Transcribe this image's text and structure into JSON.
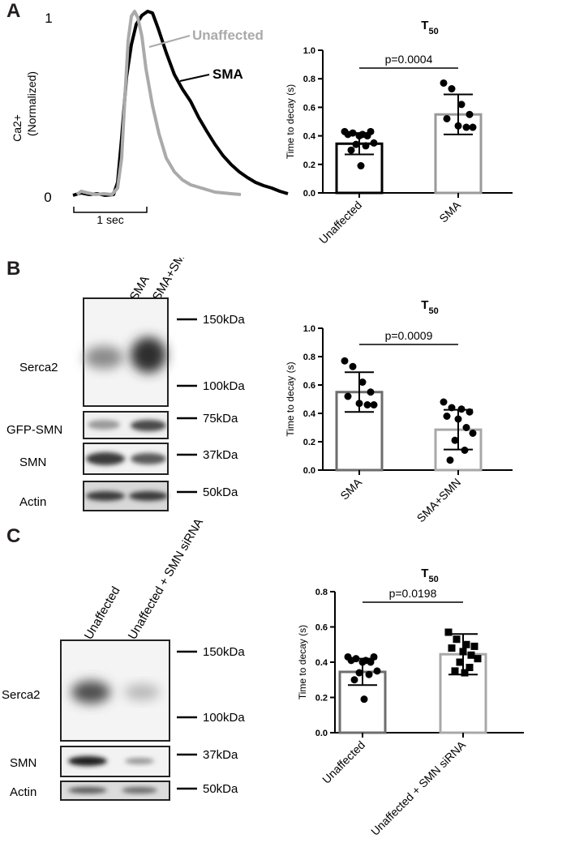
{
  "panels": {
    "A": {
      "letter": "A",
      "trace": {
        "ylabel_line1": "Ca2+",
        "ylabel_line2": "(Normalized)",
        "ytick_top": "1",
        "ytick_bottom": "0",
        "scalebar_label": "1 sec",
        "label_unaffected": "Unaffected",
        "label_sma": "SMA",
        "color_unaffected": "#aaaaaa",
        "color_sma": "#000000"
      }
    },
    "B": {
      "letter": "B",
      "lanes": [
        "SMA",
        "SMA+SMN"
      ],
      "rows": [
        {
          "label": "Serca2",
          "markers": [
            "150kDa",
            "100kDa"
          ]
        },
        {
          "label": "GFP-SMN",
          "markers": [
            "75kDa"
          ]
        },
        {
          "label": "SMN",
          "markers": [
            "37kDa"
          ]
        },
        {
          "label": "Actin",
          "markers": [
            "50kDa"
          ]
        }
      ]
    },
    "C": {
      "letter": "C",
      "lanes": [
        "Unaffected",
        "Unaffected + SMN siRNA"
      ],
      "rows": [
        {
          "label": "Serca2",
          "markers": [
            "150kDa",
            "100kDa"
          ]
        },
        {
          "label": "SMN",
          "markers": [
            "37kDa"
          ]
        },
        {
          "label": "Actin",
          "markers": [
            "50kDa"
          ]
        }
      ]
    }
  },
  "chart_data": [
    {
      "type": "bar",
      "title": "T",
      "title_sub": "50",
      "ylabel": "Time to decay (s)",
      "ylim": [
        0,
        1.0
      ],
      "yticks": [
        "0.0",
        "0.2",
        "0.4",
        "0.6",
        "0.8",
        "1.0"
      ],
      "categories": [
        "Unaffected",
        "SMA"
      ],
      "bar_colors": [
        "#000000",
        "#9a9a9a"
      ],
      "values": [
        0.345,
        0.55
      ],
      "sd": [
        0.075,
        0.14
      ],
      "points": [
        [
          0.43,
          0.42,
          0.41,
          0.43,
          0.41,
          0.4,
          0.4,
          0.35,
          0.34,
          0.33,
          0.3,
          0.19
        ],
        [
          0.77,
          0.73,
          0.62,
          0.55,
          0.52,
          0.47,
          0.46,
          0.46
        ]
      ],
      "annotation": "p=0.0004"
    },
    {
      "type": "bar",
      "title": "T",
      "title_sub": "50",
      "ylabel": "Time to decay (s)",
      "ylim": [
        0,
        1.0
      ],
      "yticks": [
        "0.0",
        "0.2",
        "0.4",
        "0.6",
        "0.8",
        "1.0"
      ],
      "categories": [
        "SMA",
        "SMA+SMN"
      ],
      "bar_colors": [
        "#6d6d6d",
        "#a8a8a8"
      ],
      "values": [
        0.55,
        0.285
      ],
      "sd": [
        0.14,
        0.14
      ],
      "points": [
        [
          0.77,
          0.73,
          0.62,
          0.55,
          0.52,
          0.47,
          0.46,
          0.46
        ],
        [
          0.48,
          0.44,
          0.43,
          0.41,
          0.38,
          0.36,
          0.3,
          0.26,
          0.21,
          0.14,
          0.07
        ]
      ],
      "annotation": "p=0.0009"
    },
    {
      "type": "bar",
      "title": "T",
      "title_sub": "50",
      "ylabel": "Time to decay (s)",
      "ylim": [
        0,
        0.8
      ],
      "yticks": [
        "0.0",
        "0.2",
        "0.4",
        "0.6",
        "0.8"
      ],
      "categories": [
        "Unaffected",
        "Unaffected + SMN siRNA"
      ],
      "bar_colors": [
        "#6d6d6d",
        "#a8a8a8"
      ],
      "values": [
        0.345,
        0.445
      ],
      "sd": [
        0.075,
        0.115
      ],
      "points": [
        [
          0.43,
          0.42,
          0.41,
          0.43,
          0.41,
          0.4,
          0.4,
          0.35,
          0.34,
          0.33,
          0.3,
          0.19
        ],
        [
          0.57,
          0.53,
          0.5,
          0.49,
          0.48,
          0.46,
          0.44,
          0.42,
          0.4,
          0.37,
          0.35,
          0.34
        ]
      ],
      "marker": [
        "circle",
        "square"
      ],
      "annotation": "p=0.0198"
    }
  ]
}
